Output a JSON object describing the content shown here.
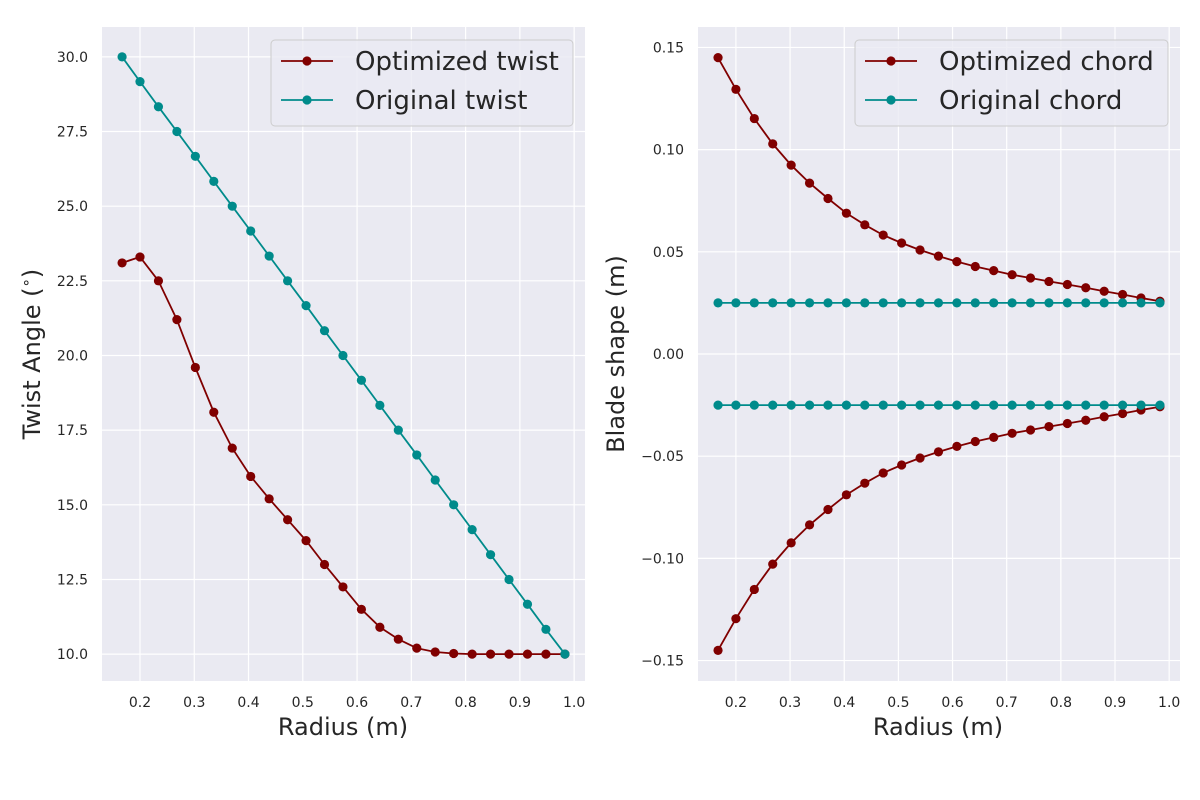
{
  "colors": {
    "optimized": "#800000",
    "original": "#008b8b",
    "plot_background": "#eaeaf2",
    "grid": "#ffffff",
    "legend_background": "#eaeaf2",
    "legend_border": "#cccccc"
  },
  "chart_data": [
    {
      "type": "line",
      "xlabel": "Radius (m)",
      "ylabel": "Twist Angle ($^{\\circ}$)",
      "ylabel_main": "Twist Angle (",
      "ylabel_sup": "∘",
      "ylabel_tail": ")",
      "xlim": [
        0.13,
        1.02
      ],
      "ylim": [
        9.1,
        31.0
      ],
      "grid": true,
      "legend_position": "top-right",
      "xticks": [
        0.2,
        0.3,
        0.4,
        0.5,
        0.6,
        0.7,
        0.8,
        0.9,
        1.0
      ],
      "xtick_labels": [
        "0.2",
        "0.3",
        "0.4",
        "0.5",
        "0.6",
        "0.7",
        "0.8",
        "0.9",
        "1.0"
      ],
      "yticks": [
        10.0,
        12.5,
        15.0,
        17.5,
        20.0,
        22.5,
        25.0,
        27.5,
        30.0
      ],
      "ytick_labels": [
        "10.0",
        "12.5",
        "15.0",
        "17.5",
        "20.0",
        "22.5",
        "25.0",
        "27.5",
        "30.0"
      ],
      "x": [
        0.167,
        0.2,
        0.234,
        0.268,
        0.302,
        0.336,
        0.37,
        0.404,
        0.438,
        0.472,
        0.506,
        0.54,
        0.574,
        0.608,
        0.642,
        0.676,
        0.71,
        0.744,
        0.778,
        0.812,
        0.846,
        0.88,
        0.914,
        0.948,
        0.983
      ],
      "series": [
        {
          "name": "Optimized twist",
          "color_key": "optimized",
          "values": [
            23.1,
            23.3,
            22.5,
            21.2,
            19.6,
            18.1,
            16.9,
            15.95,
            15.2,
            14.5,
            13.8,
            13.0,
            12.25,
            11.5,
            10.9,
            10.5,
            10.2,
            10.07,
            10.02,
            10.0,
            10.0,
            10.0,
            10.0,
            10.0,
            10.0
          ]
        },
        {
          "name": "Original twist",
          "color_key": "original",
          "values": [
            30.0,
            29.17,
            28.33,
            27.5,
            26.67,
            25.83,
            25.0,
            24.17,
            23.33,
            22.5,
            21.67,
            20.83,
            20.0,
            19.17,
            18.33,
            17.5,
            16.67,
            15.83,
            15.0,
            14.17,
            13.33,
            12.5,
            11.67,
            10.83,
            10.0
          ]
        }
      ]
    },
    {
      "type": "line",
      "xlabel": "Radius (m)",
      "ylabel": "Blade shape (m)",
      "xlim": [
        0.13,
        1.02
      ],
      "ylim": [
        -0.16,
        0.16
      ],
      "grid": true,
      "legend_position": "top-right",
      "xticks": [
        0.2,
        0.3,
        0.4,
        0.5,
        0.6,
        0.7,
        0.8,
        0.9,
        1.0
      ],
      "xtick_labels": [
        "0.2",
        "0.3",
        "0.4",
        "0.5",
        "0.6",
        "0.7",
        "0.8",
        "0.9",
        "1.0"
      ],
      "yticks": [
        -0.15,
        -0.1,
        -0.05,
        0.0,
        0.05,
        0.1,
        0.15
      ],
      "ytick_labels": [
        "−0.15",
        "−0.10",
        "−0.05",
        "0.00",
        "0.05",
        "0.10",
        "0.15"
      ],
      "x": [
        0.167,
        0.2,
        0.234,
        0.268,
        0.302,
        0.336,
        0.37,
        0.404,
        0.438,
        0.472,
        0.506,
        0.54,
        0.574,
        0.608,
        0.642,
        0.676,
        0.71,
        0.744,
        0.778,
        0.812,
        0.846,
        0.88,
        0.914,
        0.948,
        0.983
      ],
      "series": [
        {
          "name": "Optimized chord",
          "color_key": "optimized",
          "values": [
            0.145,
            0.1295,
            0.1152,
            0.1028,
            0.0924,
            0.0836,
            0.0761,
            0.0689,
            0.0632,
            0.0582,
            0.0543,
            0.0509,
            0.0479,
            0.0452,
            0.0428,
            0.0408,
            0.0388,
            0.0372,
            0.0355,
            0.034,
            0.0324,
            0.0307,
            0.0291,
            0.0274,
            0.0258
          ]
        },
        {
          "name": "",
          "color_key": "optimized",
          "values": [
            -0.145,
            -0.1295,
            -0.1152,
            -0.1028,
            -0.0924,
            -0.0836,
            -0.0761,
            -0.0689,
            -0.0632,
            -0.0582,
            -0.0543,
            -0.0509,
            -0.0479,
            -0.0452,
            -0.0428,
            -0.0408,
            -0.0388,
            -0.0372,
            -0.0355,
            -0.034,
            -0.0324,
            -0.0307,
            -0.0291,
            -0.0274,
            -0.0258
          ]
        },
        {
          "name": "Original chord",
          "color_key": "original",
          "values": [
            0.025,
            0.025,
            0.025,
            0.025,
            0.025,
            0.025,
            0.025,
            0.025,
            0.025,
            0.025,
            0.025,
            0.025,
            0.025,
            0.025,
            0.025,
            0.025,
            0.025,
            0.025,
            0.025,
            0.025,
            0.025,
            0.025,
            0.025,
            0.025,
            0.025
          ]
        },
        {
          "name": "",
          "color_key": "original",
          "values": [
            -0.025,
            -0.025,
            -0.025,
            -0.025,
            -0.025,
            -0.025,
            -0.025,
            -0.025,
            -0.025,
            -0.025,
            -0.025,
            -0.025,
            -0.025,
            -0.025,
            -0.025,
            -0.025,
            -0.025,
            -0.025,
            -0.025,
            -0.025,
            -0.025,
            -0.025,
            -0.025,
            -0.025,
            -0.025
          ]
        }
      ]
    }
  ]
}
